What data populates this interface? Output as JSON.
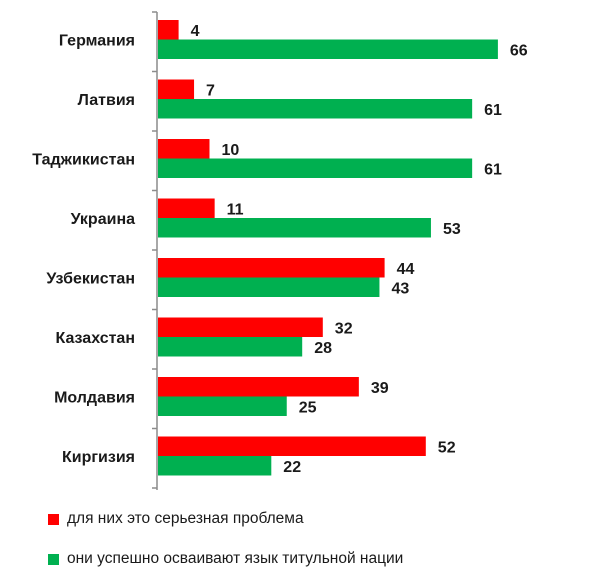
{
  "chart_data": {
    "type": "bar",
    "orientation": "horizontal",
    "categories": [
      "Германия",
      "Латвия",
      "Таджикистан",
      "Украина",
      "Узбекистан",
      "Казахстан",
      "Молдавия",
      "Киргизия"
    ],
    "series": [
      {
        "name": "для них это серьезная проблема",
        "color": "#ff0000",
        "values": [
          4,
          7,
          10,
          11,
          44,
          32,
          39,
          52
        ]
      },
      {
        "name": "они успешно осваивают  язык титульной нации",
        "color": "#00b050",
        "values": [
          66,
          61,
          61,
          53,
          43,
          28,
          25,
          22
        ]
      }
    ],
    "xlim": [
      0,
      100
    ],
    "grid": false,
    "legend_position": "bottom",
    "data_labels": true
  }
}
